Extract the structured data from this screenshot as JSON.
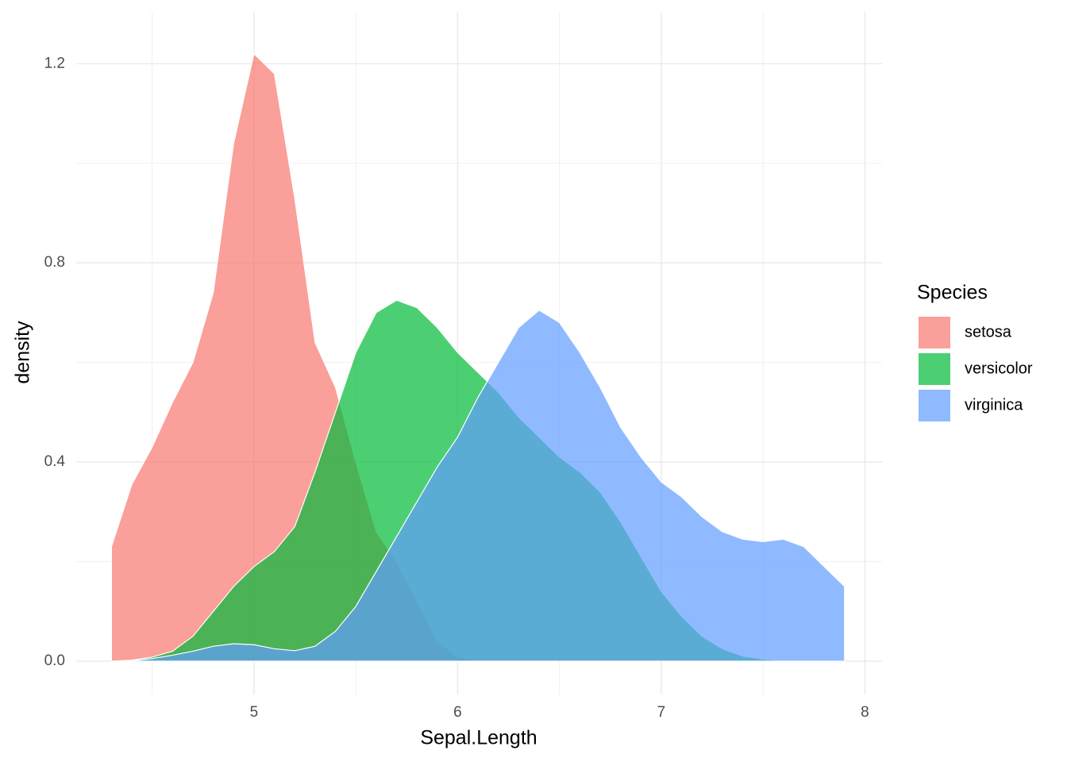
{
  "chart_data": {
    "type": "density",
    "x_label": "Sepal.Length",
    "y_label": "density",
    "legend_title": "Species",
    "legend_position": "right",
    "grid": true,
    "alpha": 0.7,
    "x": [
      4.3,
      4.4,
      4.5,
      4.6,
      4.7,
      4.8,
      4.9,
      5.0,
      5.1,
      5.2,
      5.3,
      5.4,
      5.5,
      5.6,
      5.7,
      5.8,
      5.9,
      6.0,
      6.1,
      6.2,
      6.3,
      6.4,
      6.5,
      6.6,
      6.7,
      6.8,
      6.9,
      7.0,
      7.1,
      7.2,
      7.3,
      7.4,
      7.5,
      7.6,
      7.7,
      7.8,
      7.9
    ],
    "series": [
      {
        "name": "setosa",
        "color": "#F8766D",
        "values": [
          0.23,
          0.355,
          0.43,
          0.52,
          0.6,
          0.74,
          1.04,
          1.22,
          1.18,
          0.93,
          0.64,
          0.55,
          0.4,
          0.26,
          0.2,
          0.12,
          0.04,
          0.008,
          0.001,
          0,
          0,
          0,
          0,
          0,
          0,
          0,
          0,
          0,
          0,
          0,
          0,
          0,
          0,
          0,
          0,
          0,
          0
        ]
      },
      {
        "name": "versicolor",
        "color": "#00BA38",
        "values": [
          0,
          0.002,
          0.008,
          0.02,
          0.05,
          0.1,
          0.15,
          0.19,
          0.22,
          0.27,
          0.38,
          0.5,
          0.62,
          0.7,
          0.725,
          0.71,
          0.67,
          0.62,
          0.58,
          0.54,
          0.49,
          0.45,
          0.41,
          0.38,
          0.34,
          0.28,
          0.21,
          0.14,
          0.09,
          0.05,
          0.025,
          0.01,
          0.004,
          0.001,
          0,
          0,
          0
        ]
      },
      {
        "name": "virginica",
        "color": "#619CFF",
        "values": [
          0,
          0.001,
          0.005,
          0.012,
          0.02,
          0.03,
          0.035,
          0.033,
          0.025,
          0.021,
          0.03,
          0.06,
          0.11,
          0.18,
          0.25,
          0.32,
          0.39,
          0.45,
          0.53,
          0.6,
          0.67,
          0.705,
          0.68,
          0.62,
          0.55,
          0.47,
          0.41,
          0.36,
          0.33,
          0.29,
          0.26,
          0.245,
          0.24,
          0.245,
          0.23,
          0.19,
          0.15
        ]
      }
    ],
    "xlim": [
      4.127,
      8.084
    ],
    "ylim": [
      -0.067,
      1.304
    ],
    "xticks": [
      5,
      6,
      7,
      8
    ],
    "yticks": [
      {
        "value": 0,
        "label": "0.0"
      },
      {
        "value": 0.4,
        "label": "0.4"
      },
      {
        "value": 0.8,
        "label": "0.8"
      },
      {
        "value": 1.2,
        "label": "1.2"
      }
    ],
    "minor_xticks": [
      4.5,
      5.5,
      6.5,
      7.5
    ],
    "minor_yticks": [
      0.2,
      0.6,
      1.0
    ]
  }
}
